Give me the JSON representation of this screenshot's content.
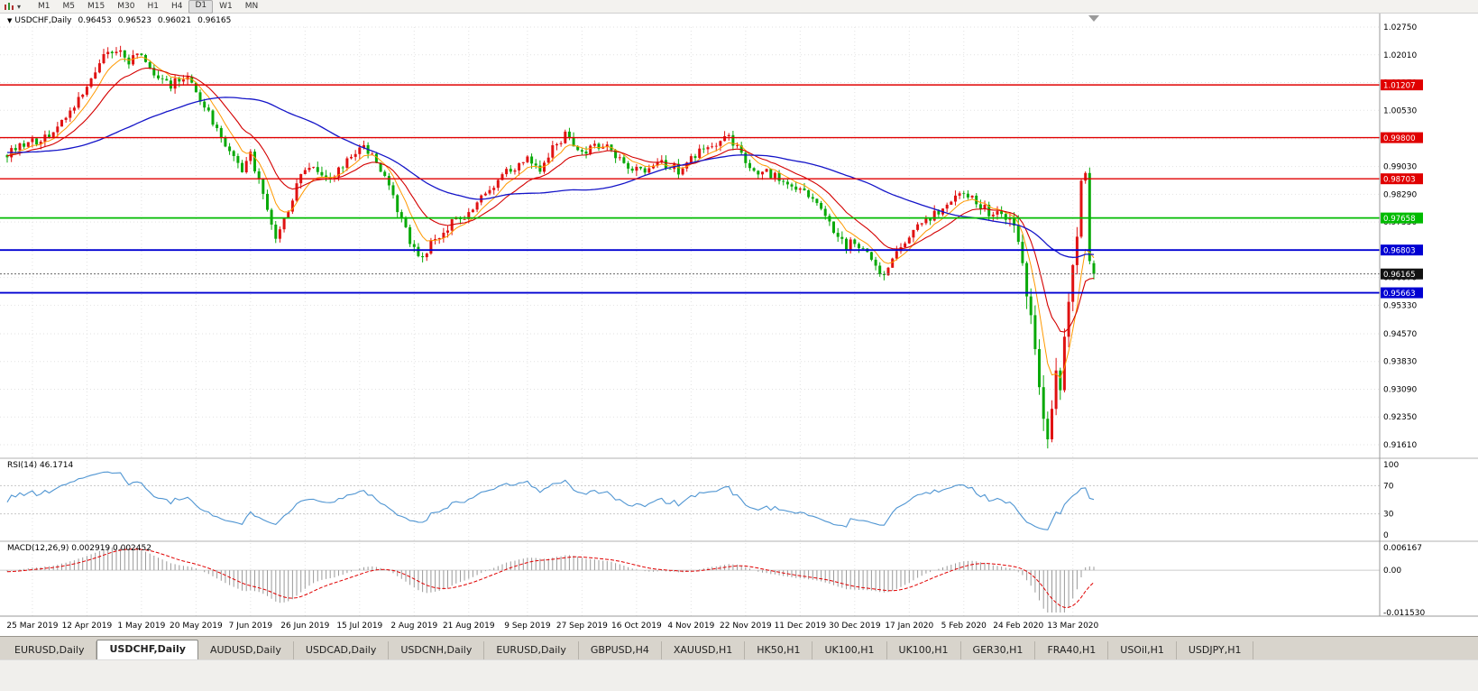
{
  "toolbar": {
    "timeframes": [
      "M1",
      "M5",
      "M15",
      "M30",
      "H1",
      "H4",
      "D1",
      "W1",
      "MN"
    ],
    "active": "D1"
  },
  "chart_meta": {
    "dropdown_icon": "▼",
    "symbol_period": "USDCHF,Daily",
    "ohlc": {
      "open": "0.96453",
      "high": "0.96523",
      "low": "0.96021",
      "close": "0.96165"
    }
  },
  "indicators": {
    "rsi_label": "RSI(14) 46.1714",
    "macd_label": "MACD(12,26,9) 0.002919 0.002452"
  },
  "tabs": {
    "items": [
      "EURUSD,Daily",
      "USDCHF,Daily",
      "AUDUSD,Daily",
      "USDCAD,Daily",
      "USDCNH,Daily",
      "EURUSD,Daily",
      "GBPUSD,H4",
      "XAUUSD,H1",
      "HK50,H1",
      "UK100,H1",
      "UK100,H1",
      "GER30,H1",
      "FRA40,H1",
      "USOil,H1",
      "USDJPY,H1"
    ],
    "active_index": 1
  },
  "colors": {
    "bull": "#e01212",
    "bear": "#09a909",
    "ma_fast": "#ff9900",
    "ma_mid": "#d40000",
    "ma_slow": "#1414c8",
    "grid": "#e2e2e2",
    "rsi_line": "#4f95d2",
    "macd_hist": "#9a9a9a",
    "macd_signal": "#e00000"
  },
  "chart_data": {
    "type": "candlestick",
    "symbol": "USDCHF",
    "timeframe": "Daily",
    "ohlc_current": {
      "open": 0.96453,
      "high": 0.96523,
      "low": 0.96021,
      "close": 0.96165
    },
    "y_range": [
      0.9161,
      1.0275
    ],
    "price_axis_ticks": [
      "1.02750",
      "1.02010",
      "1.01270",
      "1.00530",
      "0.99770",
      "0.99030",
      "0.98290",
      "0.97550",
      "0.96810",
      "0.96070",
      "0.95330",
      "0.94570",
      "0.93830",
      "0.93090",
      "0.92350",
      "0.91610"
    ],
    "horizontal_levels": [
      {
        "value": 1.01207,
        "label": "1.01207",
        "color": "#e00000",
        "width": 1.4
      },
      {
        "value": 0.998,
        "label": "0.99800",
        "color": "#e00000",
        "width": 1.4
      },
      {
        "value": 0.98703,
        "label": "0.98703",
        "color": "#e00000",
        "width": 1.4
      },
      {
        "value": 0.97658,
        "label": "0.97658",
        "color": "#00bb00",
        "width": 1.8
      },
      {
        "value": 0.96803,
        "label": "0.96803",
        "color": "#0000d2",
        "width": 1.9
      },
      {
        "value": 0.95663,
        "label": "0.95663",
        "color": "#0000d2",
        "width": 1.9
      }
    ],
    "current_price": {
      "value": 0.96165,
      "label": "0.96165"
    },
    "x_tick_labels": [
      {
        "label": "25 Mar 2019",
        "bar": 6
      },
      {
        "label": "12 Apr 2019",
        "bar": 19
      },
      {
        "label": "1 May 2019",
        "bar": 32
      },
      {
        "label": "20 May 2019",
        "bar": 45
      },
      {
        "label": "7 Jun 2019",
        "bar": 58
      },
      {
        "label": "26 Jun 2019",
        "bar": 71
      },
      {
        "label": "15 Jul 2019",
        "bar": 84
      },
      {
        "label": "2 Aug 2019",
        "bar": 97
      },
      {
        "label": "21 Aug 2019",
        "bar": 110
      },
      {
        "label": "9 Sep 2019",
        "bar": 124
      },
      {
        "label": "27 Sep 2019",
        "bar": 137
      },
      {
        "label": "16 Oct 2019",
        "bar": 150
      },
      {
        "label": "4 Nov 2019",
        "bar": 163
      },
      {
        "label": "22 Nov 2019",
        "bar": 176
      },
      {
        "label": "11 Dec 2019",
        "bar": 189
      },
      {
        "label": "30 Dec 2019",
        "bar": 202
      },
      {
        "label": "17 Jan 2020",
        "bar": 215
      },
      {
        "label": "5 Feb 2020",
        "bar": 228
      },
      {
        "label": "24 Feb 2020",
        "bar": 241
      },
      {
        "label": "13 Mar 2020",
        "bar": 254
      }
    ],
    "bars_visible": 260,
    "price_path_anchors": [
      [
        -60,
        0.998
      ],
      [
        -45,
        0.9938
      ],
      [
        -30,
        0.9958
      ],
      [
        -15,
        0.9922
      ],
      [
        0,
        0.9935
      ],
      [
        4,
        0.9962
      ],
      [
        8,
        0.997
      ],
      [
        12,
        1.0008
      ],
      [
        16,
        1.0058
      ],
      [
        20,
        1.0148
      ],
      [
        23,
        1.019
      ],
      [
        26,
        1.0218
      ],
      [
        29,
        1.0185
      ],
      [
        31,
        1.0212
      ],
      [
        33,
        1.018
      ],
      [
        36,
        1.013
      ],
      [
        39,
        1.0118
      ],
      [
        42,
        1.0148
      ],
      [
        45,
        1.0108
      ],
      [
        48,
        1.004
      ],
      [
        51,
        0.9985
      ],
      [
        54,
        0.9925
      ],
      [
        56,
        0.9892
      ],
      [
        58,
        0.9932
      ],
      [
        60,
        0.987
      ],
      [
        62,
        0.98
      ],
      [
        64,
        0.9716
      ],
      [
        66,
        0.9758
      ],
      [
        68,
        0.982
      ],
      [
        70,
        0.9878
      ],
      [
        73,
        0.9902
      ],
      [
        76,
        0.9868
      ],
      [
        79,
        0.9888
      ],
      [
        82,
        0.9932
      ],
      [
        85,
        0.9948
      ],
      [
        88,
        0.9918
      ],
      [
        90,
        0.9878
      ],
      [
        92,
        0.982
      ],
      [
        94,
        0.9762
      ],
      [
        96,
        0.97
      ],
      [
        98,
        0.9664
      ],
      [
        100,
        0.9682
      ],
      [
        103,
        0.9724
      ],
      [
        106,
        0.975
      ],
      [
        109,
        0.9768
      ],
      [
        112,
        0.98
      ],
      [
        115,
        0.984
      ],
      [
        118,
        0.9874
      ],
      [
        121,
        0.9904
      ],
      [
        124,
        0.9918
      ],
      [
        127,
        0.9898
      ],
      [
        130,
        0.9952
      ],
      [
        133,
        0.9988
      ],
      [
        135,
        0.9962
      ],
      [
        137,
        0.994
      ],
      [
        140,
        0.9968
      ],
      [
        143,
        0.9952
      ],
      [
        146,
        0.992
      ],
      [
        149,
        0.99
      ],
      [
        152,
        0.9894
      ],
      [
        155,
        0.9922
      ],
      [
        158,
        0.9904
      ],
      [
        161,
        0.989
      ],
      [
        164,
        0.9932
      ],
      [
        167,
        0.9952
      ],
      [
        170,
        0.9978
      ],
      [
        172,
        0.9984
      ],
      [
        174,
        0.9952
      ],
      [
        176,
        0.992
      ],
      [
        178,
        0.99
      ],
      [
        181,
        0.9884
      ],
      [
        184,
        0.9874
      ],
      [
        187,
        0.985
      ],
      [
        190,
        0.9834
      ],
      [
        193,
        0.9804
      ],
      [
        196,
        0.9758
      ],
      [
        198,
        0.9716
      ],
      [
        200,
        0.969
      ],
      [
        202,
        0.9706
      ],
      [
        205,
        0.9664
      ],
      [
        207,
        0.963
      ],
      [
        209,
        0.9608
      ],
      [
        211,
        0.9668
      ],
      [
        214,
        0.9696
      ],
      [
        217,
        0.974
      ],
      [
        220,
        0.9764
      ],
      [
        223,
        0.979
      ],
      [
        226,
        0.9826
      ],
      [
        228,
        0.9834
      ],
      [
        230,
        0.982
      ],
      [
        232,
        0.98
      ],
      [
        234,
        0.9782
      ],
      [
        236,
        0.9774
      ],
      [
        238,
        0.976
      ],
      [
        240,
        0.9744
      ],
      [
        241,
        0.97
      ],
      [
        242,
        0.964
      ],
      [
        243,
        0.956
      ],
      [
        244,
        0.948
      ],
      [
        245,
        0.94
      ],
      [
        246,
        0.931
      ],
      [
        247,
        0.9258
      ],
      [
        248,
        0.9198
      ],
      [
        249,
        0.9282
      ],
      [
        250,
        0.936
      ],
      [
        251,
        0.9322
      ],
      [
        252,
        0.942
      ],
      [
        253,
        0.956
      ],
      [
        254,
        0.9648
      ],
      [
        255,
        0.972
      ],
      [
        256,
        0.9858
      ],
      [
        257,
        0.9888
      ],
      [
        258,
        0.9645
      ],
      [
        259,
        0.96165
      ]
    ],
    "indicators": {
      "rsi": {
        "period": 14,
        "current": 46.1714,
        "scale": [
          0,
          100
        ],
        "levels": [
          30,
          70
        ],
        "axis_labels": [
          "100",
          "70",
          "30",
          "0"
        ]
      },
      "macd": {
        "params": [
          12,
          26,
          9
        ],
        "current_macd": 0.002919,
        "current_signal": 0.002452,
        "scale": [
          -0.01153,
          0.006167
        ],
        "axis_labels": [
          "0.006167",
          "0.00",
          "-0.011530"
        ]
      }
    },
    "render_hints": {
      "prehistory_bars": 60,
      "seed": 20200324
    }
  }
}
